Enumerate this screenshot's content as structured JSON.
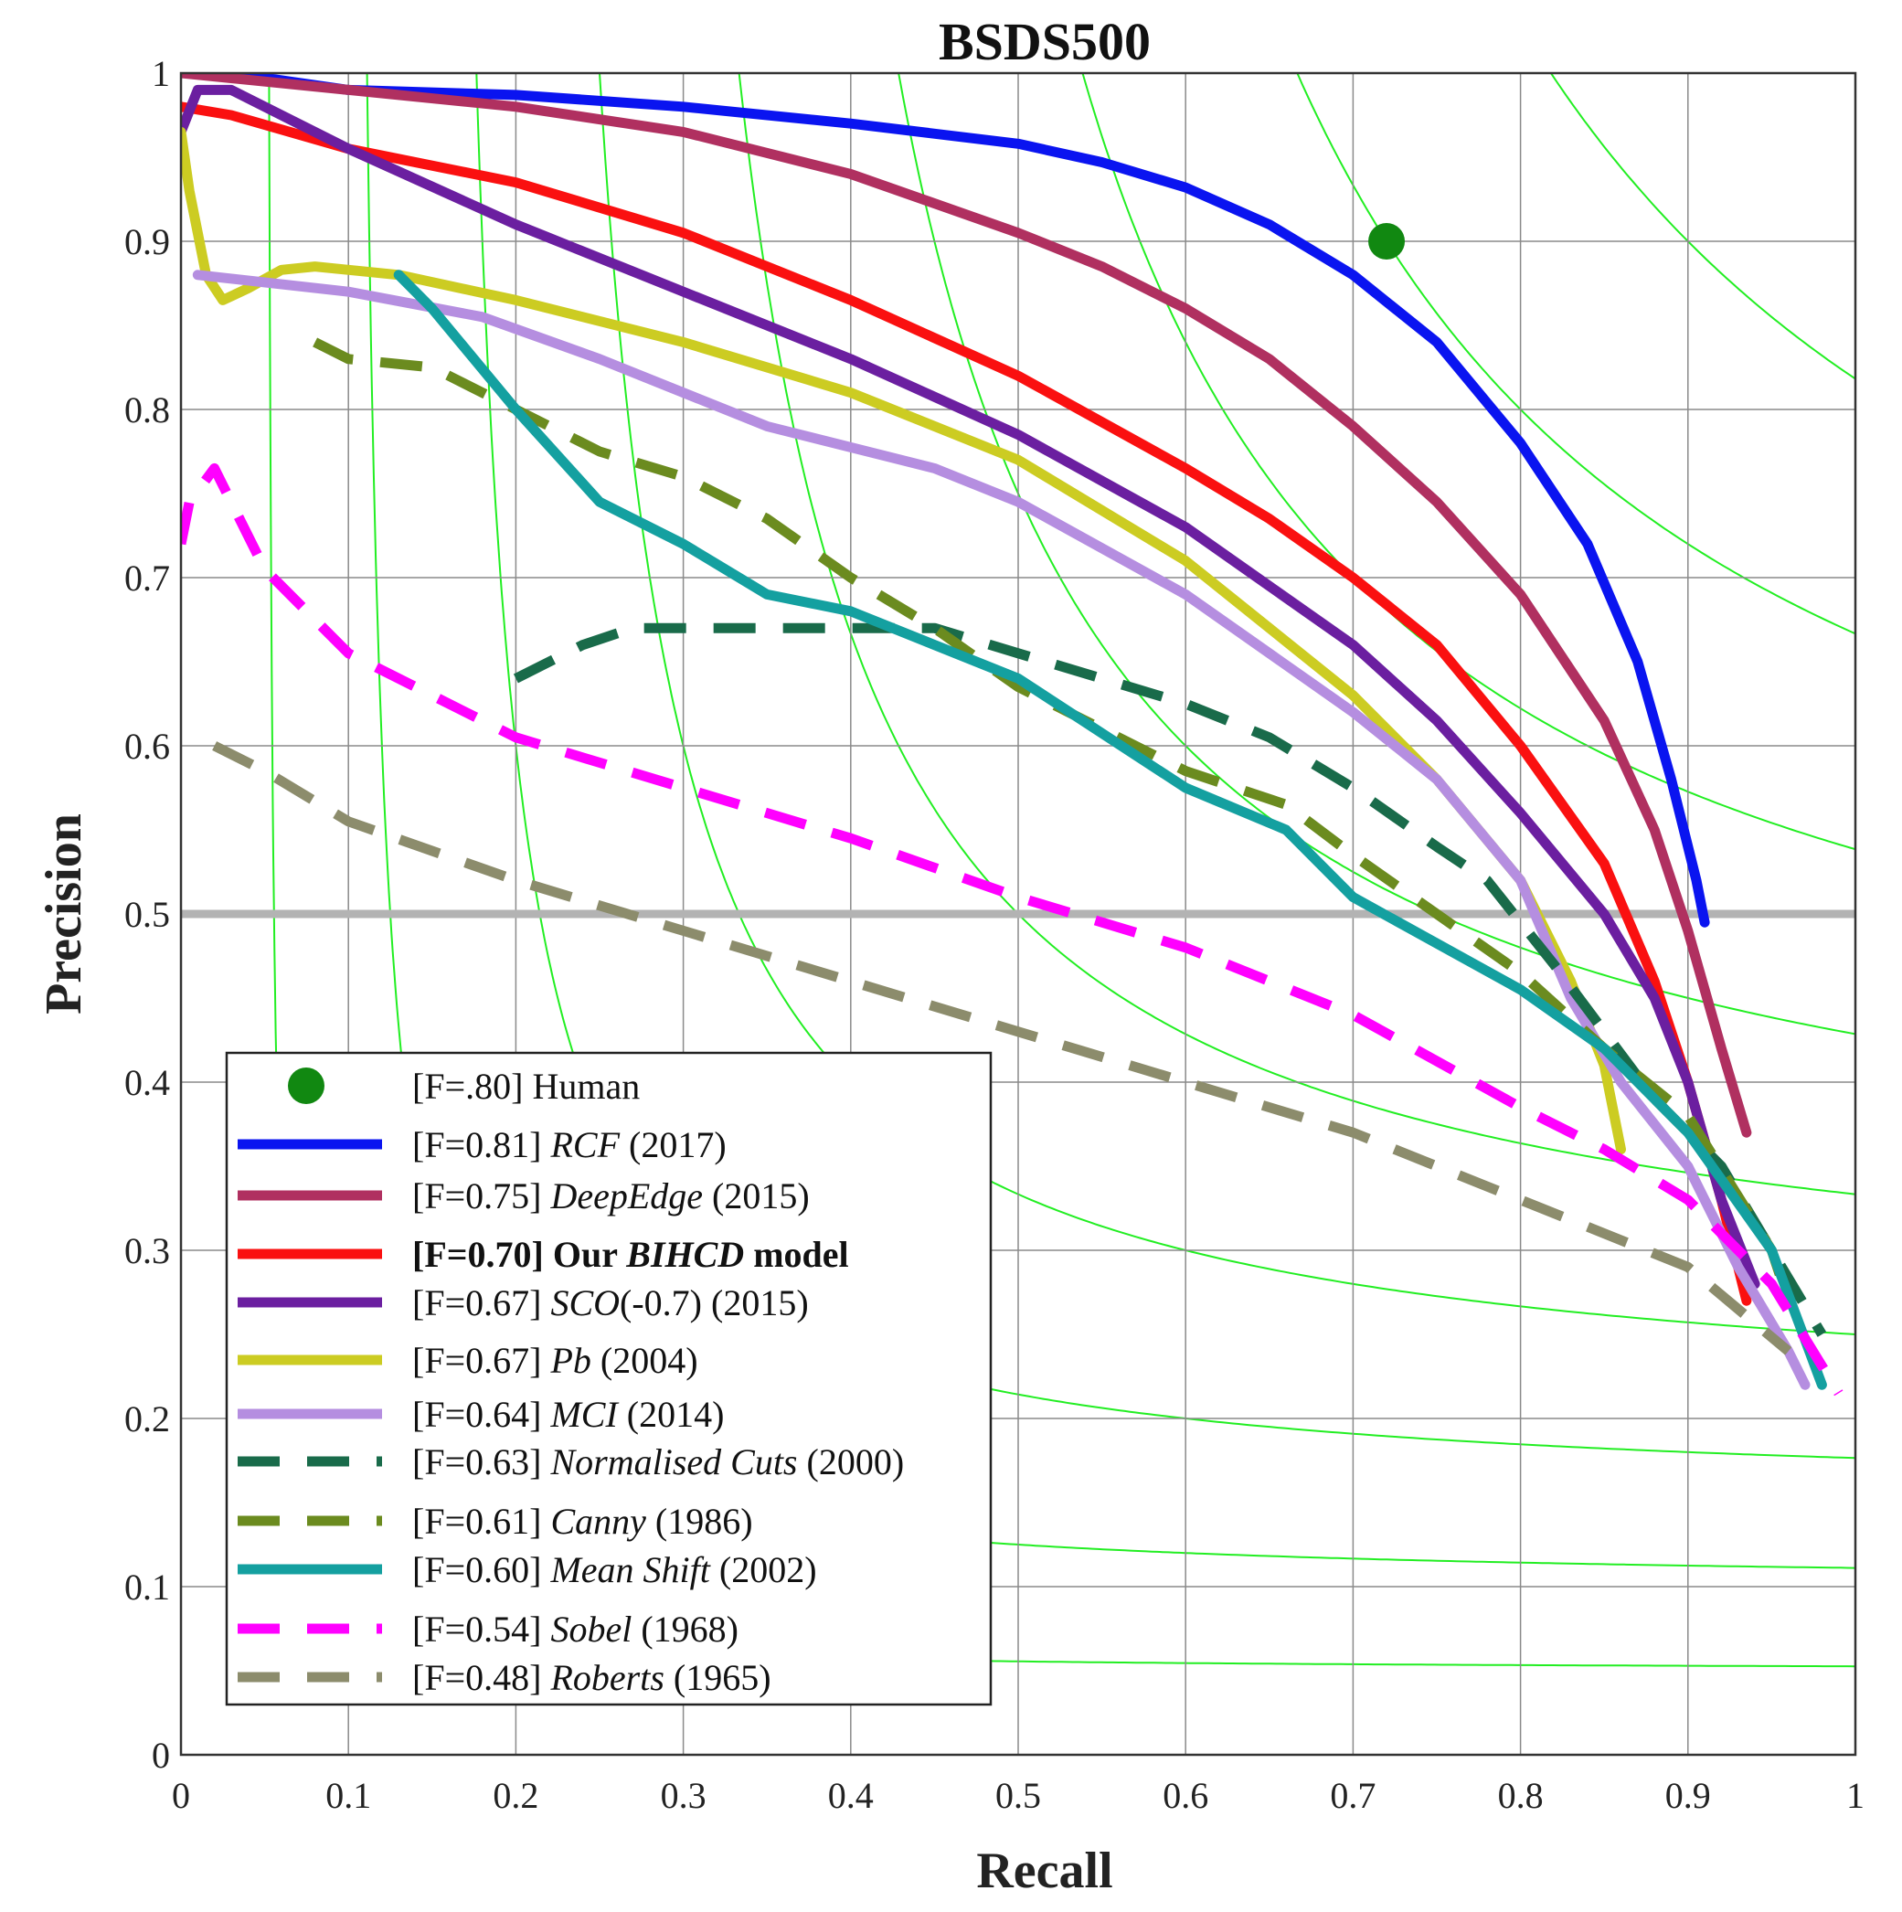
{
  "chart_data": {
    "type": "line",
    "title": "BSDS500",
    "xlabel": "Recall",
    "ylabel": "Precision",
    "xlim": [
      0,
      1
    ],
    "ylim": [
      0,
      1
    ],
    "xticks": [
      "0",
      "0.1",
      "0.2",
      "0.3",
      "0.4",
      "0.5",
      "0.6",
      "0.7",
      "0.8",
      "0.9",
      "1"
    ],
    "yticks": [
      "0",
      "0.1",
      "0.2",
      "0.3",
      "0.4",
      "0.5",
      "0.6",
      "0.7",
      "0.8",
      "0.9",
      "1"
    ],
    "grid": true,
    "reference_line": {
      "y": 0.5,
      "color": "#b3b3b3"
    },
    "iso_f_curves": {
      "color": "#22ee22",
      "levels": [
        0.1,
        0.2,
        0.3,
        0.4,
        0.5,
        0.6,
        0.7,
        0.8,
        0.9
      ]
    },
    "human_point": {
      "label": "Human",
      "f_label": "[F=.80]",
      "recall": 0.72,
      "precision": 0.9,
      "color": "#118811"
    },
    "legend_position": "bottom-left",
    "series": [
      {
        "name": "RCF",
        "f_label": "[F=0.81]",
        "year": "(2017)",
        "color": "#0a14f0",
        "dashed": false,
        "highlight": false,
        "points": [
          [
            0,
            1.0
          ],
          [
            0.03,
            1.0
          ],
          [
            0.1,
            0.99
          ],
          [
            0.2,
            0.987
          ],
          [
            0.3,
            0.98
          ],
          [
            0.4,
            0.97
          ],
          [
            0.5,
            0.958
          ],
          [
            0.55,
            0.947
          ],
          [
            0.6,
            0.932
          ],
          [
            0.65,
            0.91
          ],
          [
            0.7,
            0.88
          ],
          [
            0.75,
            0.84
          ],
          [
            0.8,
            0.78
          ],
          [
            0.84,
            0.72
          ],
          [
            0.87,
            0.65
          ],
          [
            0.89,
            0.58
          ],
          [
            0.905,
            0.52
          ],
          [
            0.91,
            0.495
          ]
        ]
      },
      {
        "name": "DeepEdge",
        "f_label": "[F=0.75]",
        "year": "(2015)",
        "color": "#b03060",
        "dashed": false,
        "highlight": false,
        "points": [
          [
            0,
            1.0
          ],
          [
            0.05,
            0.995
          ],
          [
            0.1,
            0.99
          ],
          [
            0.2,
            0.98
          ],
          [
            0.3,
            0.965
          ],
          [
            0.4,
            0.94
          ],
          [
            0.5,
            0.905
          ],
          [
            0.55,
            0.885
          ],
          [
            0.6,
            0.86
          ],
          [
            0.65,
            0.83
          ],
          [
            0.7,
            0.79
          ],
          [
            0.75,
            0.745
          ],
          [
            0.8,
            0.69
          ],
          [
            0.85,
            0.615
          ],
          [
            0.88,
            0.55
          ],
          [
            0.9,
            0.49
          ],
          [
            0.92,
            0.42
          ],
          [
            0.935,
            0.37
          ]
        ]
      },
      {
        "name": "Our BIHCD model",
        "f_label": "[F=0.70]",
        "year": "",
        "color": "#fa1010",
        "dashed": false,
        "highlight": true,
        "points": [
          [
            0,
            0.98
          ],
          [
            0.03,
            0.975
          ],
          [
            0.1,
            0.955
          ],
          [
            0.2,
            0.935
          ],
          [
            0.3,
            0.905
          ],
          [
            0.4,
            0.865
          ],
          [
            0.5,
            0.82
          ],
          [
            0.6,
            0.765
          ],
          [
            0.65,
            0.735
          ],
          [
            0.7,
            0.7
          ],
          [
            0.75,
            0.66
          ],
          [
            0.8,
            0.6
          ],
          [
            0.85,
            0.53
          ],
          [
            0.88,
            0.46
          ],
          [
            0.9,
            0.4
          ],
          [
            0.92,
            0.33
          ],
          [
            0.935,
            0.27
          ]
        ]
      },
      {
        "name": "SCO(-0.7)",
        "f_label": "[F=0.67]",
        "year": "(2015)",
        "color": "#6b1fa0",
        "dashed": false,
        "highlight": false,
        "points": [
          [
            0,
            0.965
          ],
          [
            0.01,
            0.99
          ],
          [
            0.03,
            0.99
          ],
          [
            0.1,
            0.955
          ],
          [
            0.2,
            0.91
          ],
          [
            0.3,
            0.87
          ],
          [
            0.4,
            0.83
          ],
          [
            0.5,
            0.785
          ],
          [
            0.6,
            0.73
          ],
          [
            0.7,
            0.66
          ],
          [
            0.75,
            0.615
          ],
          [
            0.8,
            0.56
          ],
          [
            0.85,
            0.5
          ],
          [
            0.88,
            0.45
          ],
          [
            0.9,
            0.4
          ],
          [
            0.92,
            0.33
          ],
          [
            0.94,
            0.28
          ]
        ]
      },
      {
        "name": "Pb",
        "f_label": "[F=0.67]",
        "year": "(2004)",
        "color": "#cccc22",
        "dashed": false,
        "highlight": false,
        "points": [
          [
            0,
            0.965
          ],
          [
            0.005,
            0.93
          ],
          [
            0.015,
            0.88
          ],
          [
            0.025,
            0.865
          ],
          [
            0.04,
            0.872
          ],
          [
            0.06,
            0.883
          ],
          [
            0.08,
            0.885
          ],
          [
            0.13,
            0.88
          ],
          [
            0.2,
            0.865
          ],
          [
            0.3,
            0.84
          ],
          [
            0.4,
            0.81
          ],
          [
            0.5,
            0.77
          ],
          [
            0.6,
            0.71
          ],
          [
            0.7,
            0.63
          ],
          [
            0.75,
            0.58
          ],
          [
            0.8,
            0.52
          ],
          [
            0.83,
            0.46
          ],
          [
            0.85,
            0.41
          ],
          [
            0.86,
            0.36
          ]
        ]
      },
      {
        "name": "MCI",
        "f_label": "[F=0.64]",
        "year": "(2014)",
        "color": "#b58ee0",
        "dashed": false,
        "highlight": false,
        "points": [
          [
            0.01,
            0.88
          ],
          [
            0.1,
            0.87
          ],
          [
            0.18,
            0.855
          ],
          [
            0.25,
            0.83
          ],
          [
            0.35,
            0.79
          ],
          [
            0.45,
            0.765
          ],
          [
            0.5,
            0.745
          ],
          [
            0.6,
            0.69
          ],
          [
            0.7,
            0.62
          ],
          [
            0.75,
            0.58
          ],
          [
            0.8,
            0.52
          ],
          [
            0.83,
            0.45
          ],
          [
            0.86,
            0.4
          ],
          [
            0.9,
            0.35
          ],
          [
            0.93,
            0.29
          ],
          [
            0.96,
            0.24
          ],
          [
            0.97,
            0.22
          ]
        ]
      },
      {
        "name": "Normalised Cuts",
        "f_label": "[F=0.63]",
        "year": "(2000)",
        "color": "#196b4a",
        "dashed": true,
        "highlight": false,
        "points": [
          [
            0.2,
            0.64
          ],
          [
            0.24,
            0.66
          ],
          [
            0.27,
            0.67
          ],
          [
            0.3,
            0.67
          ],
          [
            0.4,
            0.67
          ],
          [
            0.45,
            0.67
          ],
          [
            0.5,
            0.655
          ],
          [
            0.6,
            0.625
          ],
          [
            0.65,
            0.605
          ],
          [
            0.7,
            0.575
          ],
          [
            0.75,
            0.54
          ],
          [
            0.78,
            0.52
          ],
          [
            0.82,
            0.47
          ],
          [
            0.85,
            0.43
          ],
          [
            0.88,
            0.39
          ],
          [
            0.92,
            0.35
          ],
          [
            0.95,
            0.3
          ],
          [
            0.98,
            0.25
          ]
        ]
      },
      {
        "name": "Canny",
        "f_label": "[F=0.61]",
        "year": "(1986)",
        "color": "#6b8b1f",
        "dashed": true,
        "highlight": false,
        "points": [
          [
            0.08,
            0.84
          ],
          [
            0.1,
            0.83
          ],
          [
            0.15,
            0.825
          ],
          [
            0.2,
            0.8
          ],
          [
            0.25,
            0.775
          ],
          [
            0.3,
            0.76
          ],
          [
            0.35,
            0.735
          ],
          [
            0.4,
            0.7
          ],
          [
            0.45,
            0.67
          ],
          [
            0.5,
            0.635
          ],
          [
            0.55,
            0.61
          ],
          [
            0.6,
            0.585
          ],
          [
            0.66,
            0.565
          ],
          [
            0.7,
            0.535
          ],
          [
            0.75,
            0.5
          ],
          [
            0.8,
            0.465
          ],
          [
            0.85,
            0.42
          ],
          [
            0.9,
            0.38
          ],
          [
            0.95,
            0.3
          ],
          [
            0.96,
            0.27
          ]
        ]
      },
      {
        "name": "Mean Shift",
        "f_label": "[F=0.60]",
        "year": "(2002)",
        "color": "#14a0a0",
        "dashed": false,
        "highlight": false,
        "points": [
          [
            0.13,
            0.88
          ],
          [
            0.15,
            0.86
          ],
          [
            0.2,
            0.8
          ],
          [
            0.25,
            0.745
          ],
          [
            0.3,
            0.72
          ],
          [
            0.35,
            0.69
          ],
          [
            0.4,
            0.68
          ],
          [
            0.5,
            0.64
          ],
          [
            0.6,
            0.575
          ],
          [
            0.66,
            0.55
          ],
          [
            0.7,
            0.51
          ],
          [
            0.8,
            0.455
          ],
          [
            0.85,
            0.42
          ],
          [
            0.9,
            0.37
          ],
          [
            0.95,
            0.3
          ],
          [
            0.98,
            0.22
          ]
        ]
      },
      {
        "name": "Sobel",
        "f_label": "[F=0.54]",
        "year": "(1968)",
        "color": "#ff00ff",
        "dashed": true,
        "highlight": false,
        "points": [
          [
            0,
            0.72
          ],
          [
            0.005,
            0.745
          ],
          [
            0.02,
            0.765
          ],
          [
            0.05,
            0.705
          ],
          [
            0.1,
            0.655
          ],
          [
            0.15,
            0.63
          ],
          [
            0.2,
            0.605
          ],
          [
            0.3,
            0.575
          ],
          [
            0.4,
            0.545
          ],
          [
            0.5,
            0.51
          ],
          [
            0.6,
            0.48
          ],
          [
            0.7,
            0.44
          ],
          [
            0.8,
            0.385
          ],
          [
            0.85,
            0.36
          ],
          [
            0.9,
            0.33
          ],
          [
            0.95,
            0.28
          ],
          [
            0.99,
            0.215
          ]
        ]
      },
      {
        "name": "Roberts",
        "f_label": "[F=0.48]",
        "year": "(1965)",
        "color": "#8c8c6c",
        "dashed": true,
        "highlight": false,
        "points": [
          [
            0.02,
            0.6
          ],
          [
            0.05,
            0.585
          ],
          [
            0.1,
            0.555
          ],
          [
            0.2,
            0.52
          ],
          [
            0.3,
            0.49
          ],
          [
            0.4,
            0.46
          ],
          [
            0.5,
            0.43
          ],
          [
            0.6,
            0.4
          ],
          [
            0.7,
            0.37
          ],
          [
            0.8,
            0.33
          ],
          [
            0.9,
            0.29
          ],
          [
            0.96,
            0.24
          ]
        ]
      }
    ]
  }
}
